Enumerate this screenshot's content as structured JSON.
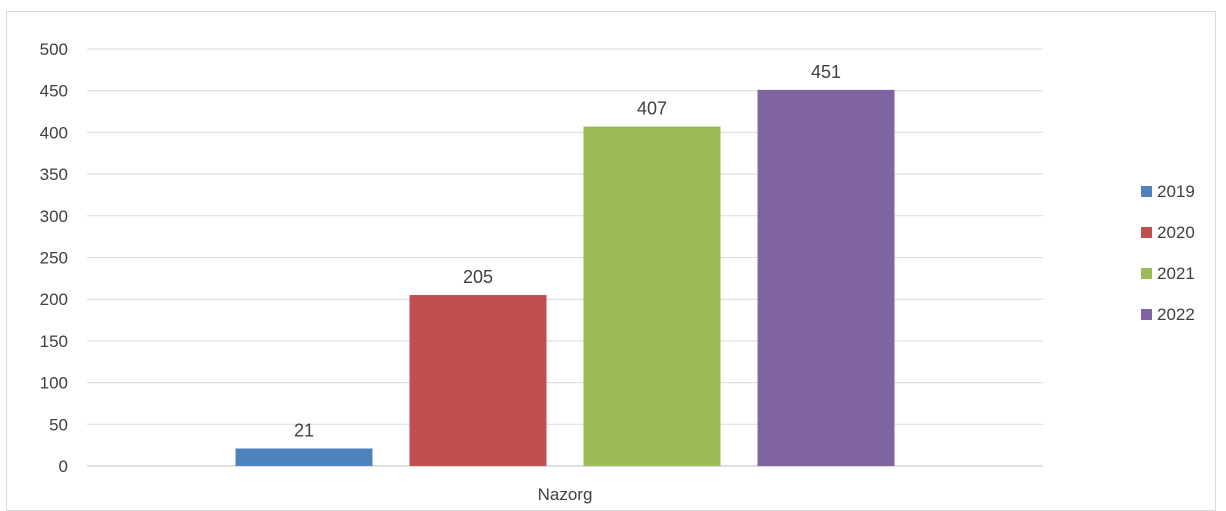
{
  "chart_data": {
    "type": "bar",
    "title": "",
    "xlabel": "",
    "ylabel": "",
    "categories": [
      "Nazorg"
    ],
    "series": [
      {
        "name": "2019",
        "values": [
          21
        ],
        "color": "#4f81bd"
      },
      {
        "name": "2020",
        "values": [
          205
        ],
        "color": "#c0504d"
      },
      {
        "name": "2021",
        "values": [
          407
        ],
        "color": "#9bbb59"
      },
      {
        "name": "2022",
        "values": [
          451
        ],
        "color": "#8064a2"
      }
    ],
    "ylim": [
      0,
      500
    ],
    "yticks": [
      "0",
      "50",
      "100",
      "150",
      "200",
      "250",
      "300",
      "350",
      "400",
      "450",
      "500"
    ],
    "grid": true,
    "legend_position": "right",
    "data_labels": true
  }
}
